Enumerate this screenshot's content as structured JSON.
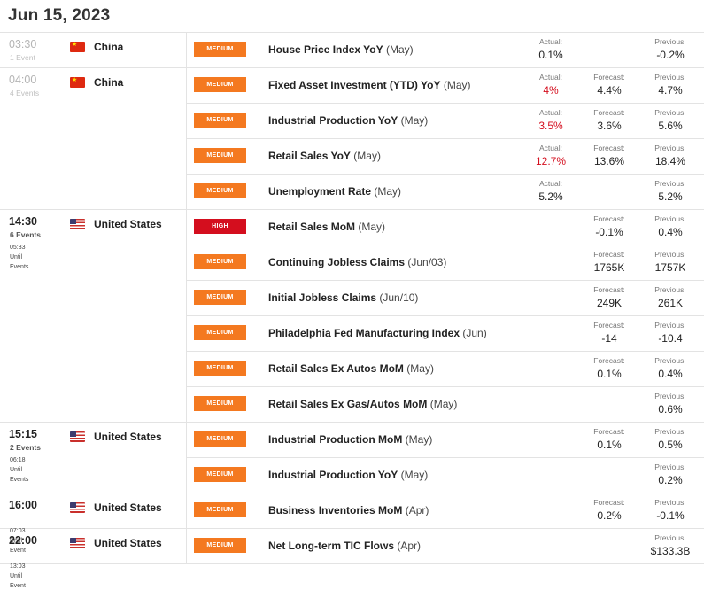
{
  "date": "Jun 15, 2023",
  "labels": {
    "actual": "Actual:",
    "forecast": "Forecast:",
    "previous": "Previous:"
  },
  "colors": {
    "medium": "#f47920",
    "high": "#d40e1e",
    "miss": "#d40e1e"
  },
  "groups": [
    {
      "time": "03:30",
      "count": "1 Event",
      "until": [],
      "country": "China",
      "flag": "china-flag-icon",
      "past": true,
      "events": [
        {
          "importance": "MEDIUM",
          "name": "House Price Index YoY",
          "period": "(May)",
          "actual": "0.1%",
          "previous": "-0.2%"
        }
      ]
    },
    {
      "time": "04:00",
      "count": "4 Events",
      "until": [],
      "country": "China",
      "flag": "china-flag-icon",
      "past": true,
      "events": [
        {
          "importance": "MEDIUM",
          "name": "Fixed Asset Investment (YTD) YoY",
          "period": "(May)",
          "actual": "4%",
          "actual_red": true,
          "forecast": "4.4%",
          "previous": "4.7%"
        },
        {
          "importance": "MEDIUM",
          "name": "Industrial Production YoY",
          "period": "(May)",
          "actual": "3.5%",
          "actual_red": true,
          "forecast": "3.6%",
          "previous": "5.6%"
        },
        {
          "importance": "MEDIUM",
          "name": "Retail Sales YoY",
          "period": "(May)",
          "actual": "12.7%",
          "actual_red": true,
          "forecast": "13.6%",
          "previous": "18.4%"
        },
        {
          "importance": "MEDIUM",
          "name": "Unemployment Rate",
          "period": "(May)",
          "actual": "5.2%",
          "previous": "5.2%"
        }
      ]
    },
    {
      "time": "14:30",
      "count": "6 Events",
      "until": [
        "05:33",
        "Until",
        "Events"
      ],
      "country": "United States",
      "flag": "us-flag-icon",
      "past": false,
      "events": [
        {
          "importance": "HIGH",
          "name": "Retail Sales MoM",
          "period": "(May)",
          "forecast": "-0.1%",
          "previous": "0.4%"
        },
        {
          "importance": "MEDIUM",
          "name": "Continuing Jobless Claims",
          "period": "(Jun/03)",
          "forecast": "1765K",
          "previous": "1757K"
        },
        {
          "importance": "MEDIUM",
          "name": "Initial Jobless Claims",
          "period": "(Jun/10)",
          "forecast": "249K",
          "previous": "261K"
        },
        {
          "importance": "MEDIUM",
          "name": "Philadelphia Fed Manufacturing Index",
          "period": "(Jun)",
          "forecast": "-14",
          "previous": "-10.4"
        },
        {
          "importance": "MEDIUM",
          "name": "Retail Sales Ex Autos MoM",
          "period": "(May)",
          "forecast": "0.1%",
          "previous": "0.4%"
        },
        {
          "importance": "MEDIUM",
          "name": "Retail Sales Ex Gas/Autos MoM",
          "period": "(May)",
          "previous": "0.6%"
        }
      ]
    },
    {
      "time": "15:15",
      "count": "2 Events",
      "until": [
        "06:18",
        "Until",
        "Events"
      ],
      "country": "United States",
      "flag": "us-flag-icon",
      "past": false,
      "events": [
        {
          "importance": "MEDIUM",
          "name": "Industrial Production MoM",
          "period": "(May)",
          "forecast": "0.1%",
          "previous": "0.5%"
        },
        {
          "importance": "MEDIUM",
          "name": "Industrial Production YoY",
          "period": "(May)",
          "previous": "0.2%"
        }
      ]
    },
    {
      "time": "16:00",
      "count": "",
      "until": [
        "07:03",
        "Until",
        "Event"
      ],
      "country": "United States",
      "flag": "us-flag-icon",
      "past": false,
      "events": [
        {
          "importance": "MEDIUM",
          "name": "Business Inventories MoM",
          "period": "(Apr)",
          "forecast": "0.2%",
          "previous": "-0.1%"
        }
      ]
    },
    {
      "time": "22:00",
      "count": "",
      "until": [
        "13:03",
        "Until",
        "Event"
      ],
      "country": "United States",
      "flag": "us-flag-icon",
      "past": false,
      "events": [
        {
          "importance": "MEDIUM",
          "name": "Net Long-term TIC Flows",
          "period": "(Apr)",
          "previous": "$133.3B"
        }
      ]
    }
  ]
}
